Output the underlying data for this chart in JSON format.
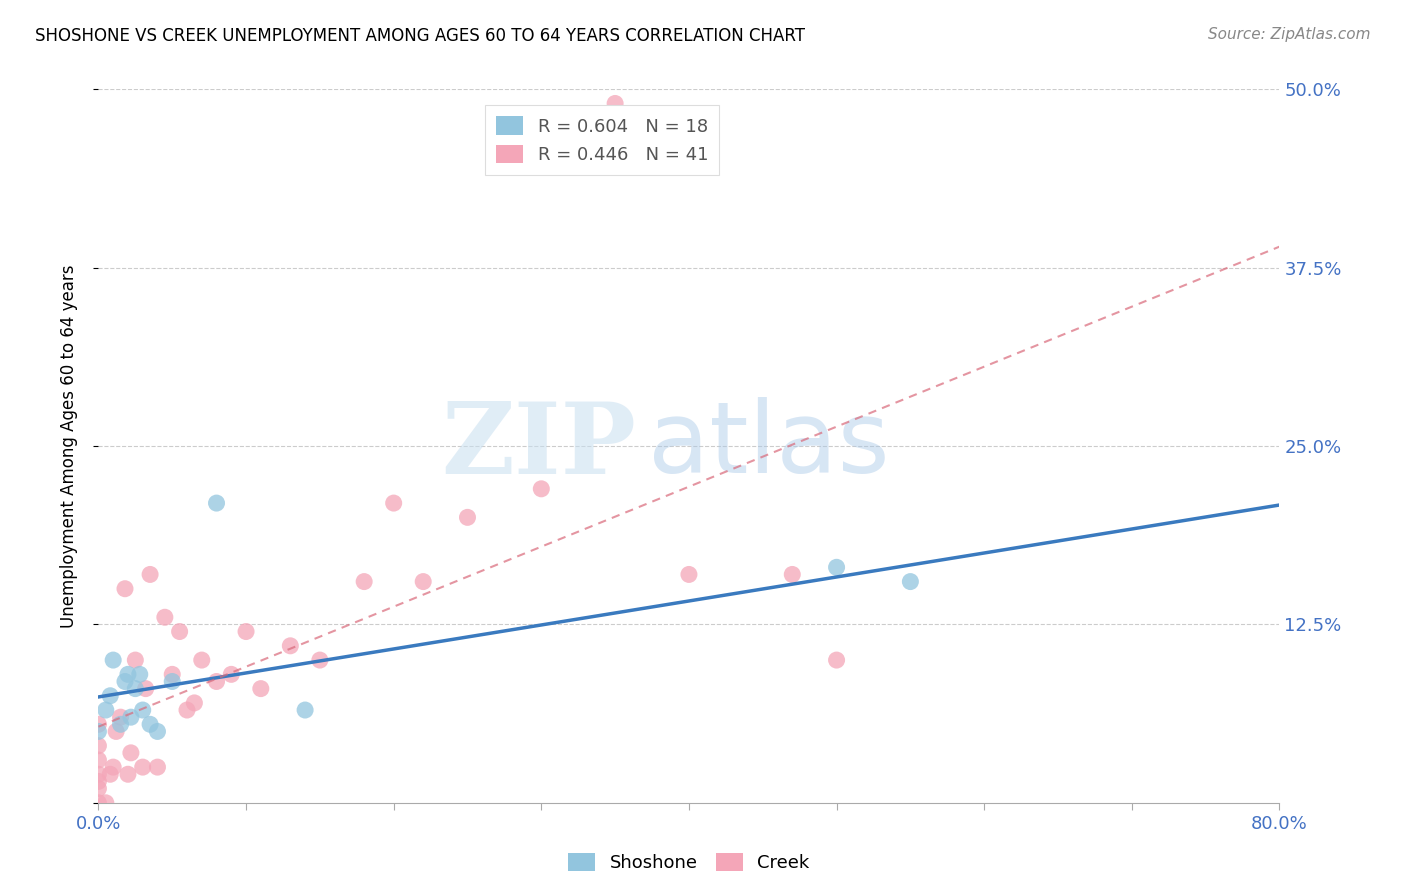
{
  "title": "SHOSHONE VS CREEK UNEMPLOYMENT AMONG AGES 60 TO 64 YEARS CORRELATION CHART",
  "source": "Source: ZipAtlas.com",
  "ylabel": "Unemployment Among Ages 60 to 64 years",
  "xlim": [
    0.0,
    0.8
  ],
  "ylim": [
    0.0,
    0.5
  ],
  "xticks": [
    0.0,
    0.1,
    0.2,
    0.3,
    0.4,
    0.5,
    0.6,
    0.7,
    0.8
  ],
  "yticks": [
    0.0,
    0.125,
    0.25,
    0.375,
    0.5
  ],
  "shoshone_color": "#92c5de",
  "creek_color": "#f4a6b8",
  "shoshone_line_color": "#3a7abf",
  "creek_line_color": "#d9697a",
  "grid_color": "#cccccc",
  "legend_shoshone_R": "0.604",
  "legend_shoshone_N": "18",
  "legend_creek_R": "0.446",
  "legend_creek_N": "41",
  "shoshone_x": [
    0.0,
    0.005,
    0.008,
    0.01,
    0.015,
    0.018,
    0.02,
    0.022,
    0.025,
    0.028,
    0.03,
    0.035,
    0.04,
    0.05,
    0.08,
    0.14,
    0.5,
    0.55
  ],
  "shoshone_y": [
    0.05,
    0.065,
    0.075,
    0.1,
    0.055,
    0.085,
    0.09,
    0.06,
    0.08,
    0.09,
    0.065,
    0.055,
    0.05,
    0.085,
    0.21,
    0.065,
    0.165,
    0.155
  ],
  "creek_x": [
    0.0,
    0.0,
    0.0,
    0.0,
    0.0,
    0.0,
    0.0,
    0.005,
    0.008,
    0.01,
    0.012,
    0.015,
    0.018,
    0.02,
    0.022,
    0.025,
    0.03,
    0.032,
    0.035,
    0.04,
    0.045,
    0.05,
    0.055,
    0.06,
    0.065,
    0.07,
    0.08,
    0.09,
    0.1,
    0.11,
    0.13,
    0.15,
    0.18,
    0.2,
    0.22,
    0.25,
    0.3,
    0.35,
    0.4,
    0.47,
    0.5
  ],
  "creek_y": [
    0.0,
    0.01,
    0.015,
    0.02,
    0.03,
    0.04,
    0.055,
    0.0,
    0.02,
    0.025,
    0.05,
    0.06,
    0.15,
    0.02,
    0.035,
    0.1,
    0.025,
    0.08,
    0.16,
    0.025,
    0.13,
    0.09,
    0.12,
    0.065,
    0.07,
    0.1,
    0.085,
    0.09,
    0.12,
    0.08,
    0.11,
    0.1,
    0.155,
    0.21,
    0.155,
    0.2,
    0.22,
    0.49,
    0.16,
    0.16,
    0.1
  ]
}
